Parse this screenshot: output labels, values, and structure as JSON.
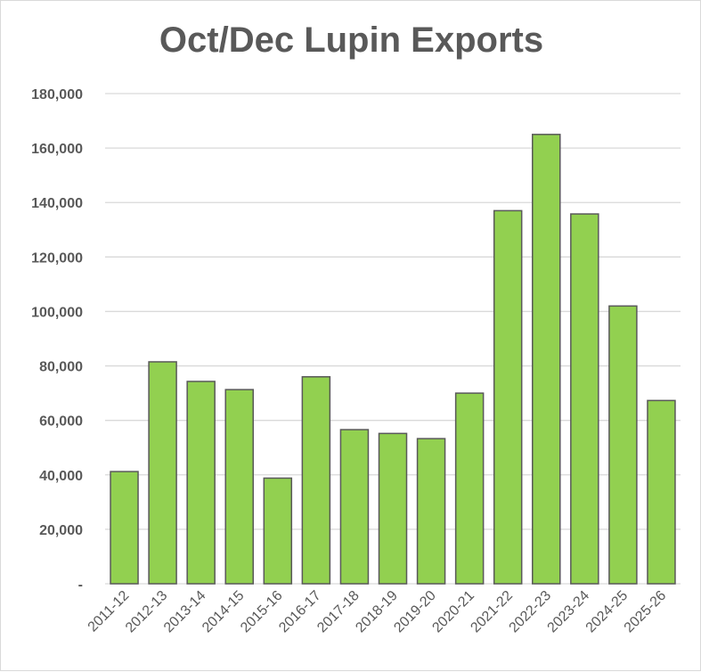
{
  "chart_data": {
    "type": "bar",
    "title": "Oct/Dec Lupin Exports",
    "xlabel": "",
    "ylabel": "",
    "categories": [
      "2011-12",
      "2012-13",
      "2013-14",
      "2014-15",
      "2015-16",
      "2016-17",
      "2017-18",
      "2018-19",
      "2019-20",
      "2020-21",
      "2021-22",
      "2022-23",
      "2023-24",
      "2024-25",
      "2025-26"
    ],
    "values": [
      41200,
      81500,
      74300,
      71300,
      38800,
      76000,
      56600,
      55200,
      53300,
      70000,
      137000,
      165000,
      135800,
      102000,
      67300
    ],
    "ylim": [
      0,
      180000
    ],
    "yticks": [
      0,
      20000,
      40000,
      60000,
      80000,
      100000,
      120000,
      140000,
      160000,
      180000
    ],
    "ytick_labels": [
      "-",
      "20,000",
      "40,000",
      "60,000",
      "80,000",
      "100,000",
      "120,000",
      "140,000",
      "160,000",
      "180,000"
    ],
    "grid": true,
    "legend": "none",
    "colors": {
      "bar_fill": "#92d050",
      "bar_stroke": "#595959",
      "grid": "#d9d9d9",
      "text": "#595959"
    }
  }
}
